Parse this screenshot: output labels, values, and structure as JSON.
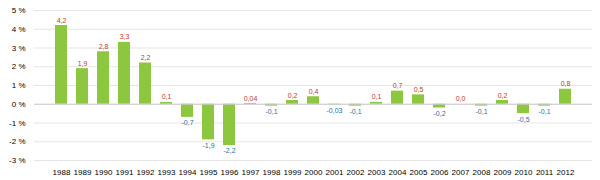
{
  "chart_data": {
    "type": "bar",
    "categories": [
      "1988",
      "1989",
      "1990",
      "1991",
      "1992",
      "1993",
      "1994",
      "1995",
      "1996",
      "1997",
      "1998",
      "1999",
      "2000",
      "2001",
      "2002",
      "2003",
      "2004",
      "2005",
      "2006",
      "2007",
      "2008",
      "2009",
      "2010",
      "2011",
      "2012"
    ],
    "values": [
      4.2,
      1.9,
      2.8,
      3.3,
      2.2,
      0.1,
      -0.7,
      -1.9,
      -2.2,
      0.04,
      -0.1,
      0.2,
      0.4,
      -0.03,
      -0.1,
      0.1,
      0.7,
      0.5,
      -0.2,
      0.0,
      -0.1,
      0.2,
      -0.5,
      -0.1,
      0.8
    ],
    "value_labels": [
      "4,2",
      "1,9",
      "2,8",
      "3,3",
      "2,2",
      "0,1",
      "-0,7",
      "-1,9",
      "-2,2",
      "0,04",
      "-0,1",
      "0,2",
      "0,4",
      "-0,03",
      "-0,1",
      "0,1",
      "0,7",
      "0,5",
      "-0,2",
      "0,0",
      "-0,1",
      "0,2",
      "-0,5",
      "-0,1",
      "0,8"
    ],
    "color": "#8dc63f",
    "data_labels": true,
    "ylim": [
      -3,
      5
    ],
    "yticks": [
      {
        "value": -3,
        "label": "-3 %"
      },
      {
        "value": -2,
        "label": "-2 %"
      },
      {
        "value": -1,
        "label": "-1 %"
      },
      {
        "value": 0,
        "label": "0 %"
      },
      {
        "value": 1,
        "label": "1 %"
      },
      {
        "value": 2,
        "label": "2 %"
      },
      {
        "value": 3,
        "label": "3 %"
      },
      {
        "value": 4,
        "label": "4 %"
      },
      {
        "value": 5,
        "label": "5 %"
      }
    ],
    "grid": true
  }
}
